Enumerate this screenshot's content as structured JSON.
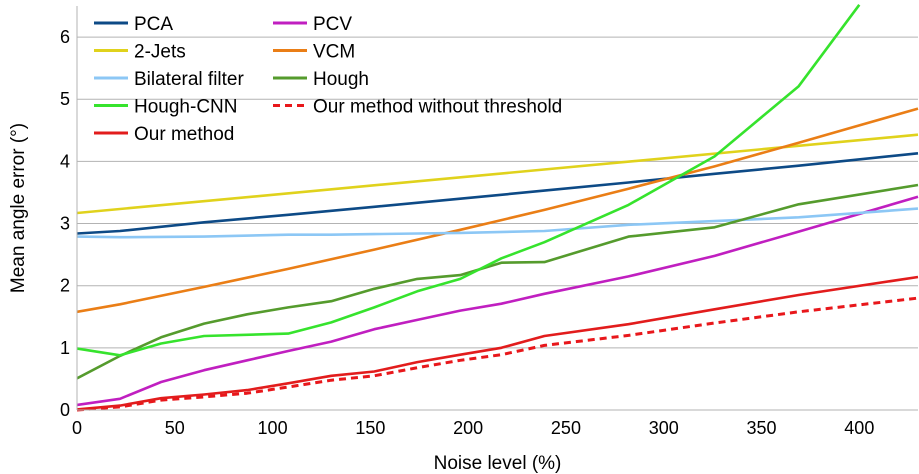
{
  "chart_data": {
    "type": "line",
    "title": "",
    "xlabel": "Noise level (%)",
    "ylabel": "Mean angle error (°)",
    "xlim": [
      0,
      430
    ],
    "ylim": [
      0,
      6.5
    ],
    "x_ticks": [
      0,
      50,
      100,
      150,
      200,
      250,
      300,
      350,
      400
    ],
    "y_ticks": [
      0,
      1,
      2,
      3,
      4,
      5,
      6
    ],
    "grid": "horizontal",
    "legend_position": "top-left",
    "series": [
      {
        "name": "PCA",
        "color": "#0d4a86",
        "dash": false,
        "x": [
          0,
          22,
          65,
          108,
          152,
          196,
          239,
          282,
          326,
          369,
          430
        ],
        "y": [
          2.84,
          2.88,
          3.02,
          3.14,
          3.27,
          3.4,
          3.53,
          3.66,
          3.8,
          3.93,
          4.13
        ]
      },
      {
        "name": "PCV",
        "color": "#c01fc0",
        "dash": false,
        "x": [
          0,
          22,
          43,
          65,
          87,
          108,
          130,
          152,
          174,
          196,
          217,
          239,
          282,
          326,
          369,
          430
        ],
        "y": [
          0.08,
          0.18,
          0.45,
          0.64,
          0.8,
          0.95,
          1.1,
          1.3,
          1.45,
          1.6,
          1.71,
          1.87,
          2.15,
          2.48,
          2.87,
          3.43
        ]
      },
      {
        "name": "2-Jets",
        "color": "#e0d21c",
        "dash": false,
        "x": [
          0,
          430
        ],
        "y": [
          3.17,
          4.43
        ]
      },
      {
        "name": "VCM",
        "color": "#ea7e16",
        "dash": false,
        "x": [
          0,
          22,
          65,
          108,
          152,
          196,
          239,
          282,
          326,
          369,
          430
        ],
        "y": [
          1.58,
          1.7,
          1.98,
          2.27,
          2.58,
          2.9,
          3.22,
          3.56,
          3.92,
          4.3,
          4.85
        ]
      },
      {
        "name": "Bilateral filter",
        "color": "#8cc7f5",
        "dash": false,
        "x": [
          0,
          22,
          65,
          108,
          130,
          152,
          174,
          196,
          239,
          282,
          326,
          369,
          430
        ],
        "y": [
          2.79,
          2.78,
          2.79,
          2.82,
          2.82,
          2.83,
          2.84,
          2.85,
          2.88,
          2.98,
          3.04,
          3.1,
          3.24
        ]
      },
      {
        "name": "Hough",
        "color": "#559b2d",
        "dash": false,
        "x": [
          0,
          22,
          43,
          65,
          87,
          108,
          130,
          152,
          174,
          196,
          217,
          239,
          282,
          326,
          369,
          430
        ],
        "y": [
          0.51,
          0.87,
          1.17,
          1.39,
          1.54,
          1.65,
          1.75,
          1.95,
          2.11,
          2.17,
          2.37,
          2.38,
          2.79,
          2.94,
          3.31,
          3.62
        ]
      },
      {
        "name": "Hough-CNN",
        "color": "#36e32d",
        "dash": false,
        "x": [
          0,
          22,
          43,
          65,
          108,
          130,
          152,
          174,
          196,
          217,
          239,
          282,
          326,
          369,
          400
        ],
        "y": [
          0.99,
          0.88,
          1.07,
          1.19,
          1.23,
          1.41,
          1.65,
          1.91,
          2.11,
          2.44,
          2.7,
          3.3,
          4.08,
          5.21,
          6.52
        ]
      },
      {
        "name": "Our method without threshold",
        "color": "#e8171b",
        "dash": true,
        "x": [
          0,
          22,
          43,
          65,
          87,
          108,
          130,
          152,
          174,
          196,
          217,
          239,
          282,
          326,
          369,
          430
        ],
        "y": [
          0.0,
          0.05,
          0.16,
          0.21,
          0.27,
          0.37,
          0.48,
          0.55,
          0.68,
          0.8,
          0.89,
          1.04,
          1.2,
          1.4,
          1.58,
          1.8
        ]
      },
      {
        "name": "Our method",
        "color": "#e21c1c",
        "dash": false,
        "x": [
          0,
          22,
          43,
          65,
          87,
          108,
          130,
          152,
          174,
          196,
          217,
          239,
          282,
          326,
          369,
          430
        ],
        "y": [
          0.01,
          0.07,
          0.19,
          0.25,
          0.32,
          0.43,
          0.55,
          0.62,
          0.77,
          0.89,
          1.0,
          1.19,
          1.38,
          1.62,
          1.85,
          2.14
        ]
      }
    ],
    "legend_order": [
      "PCA",
      "PCV",
      "2-Jets",
      "VCM",
      "Bilateral filter",
      "Hough",
      "Hough-CNN",
      "Our method without threshold",
      "Our method"
    ]
  }
}
